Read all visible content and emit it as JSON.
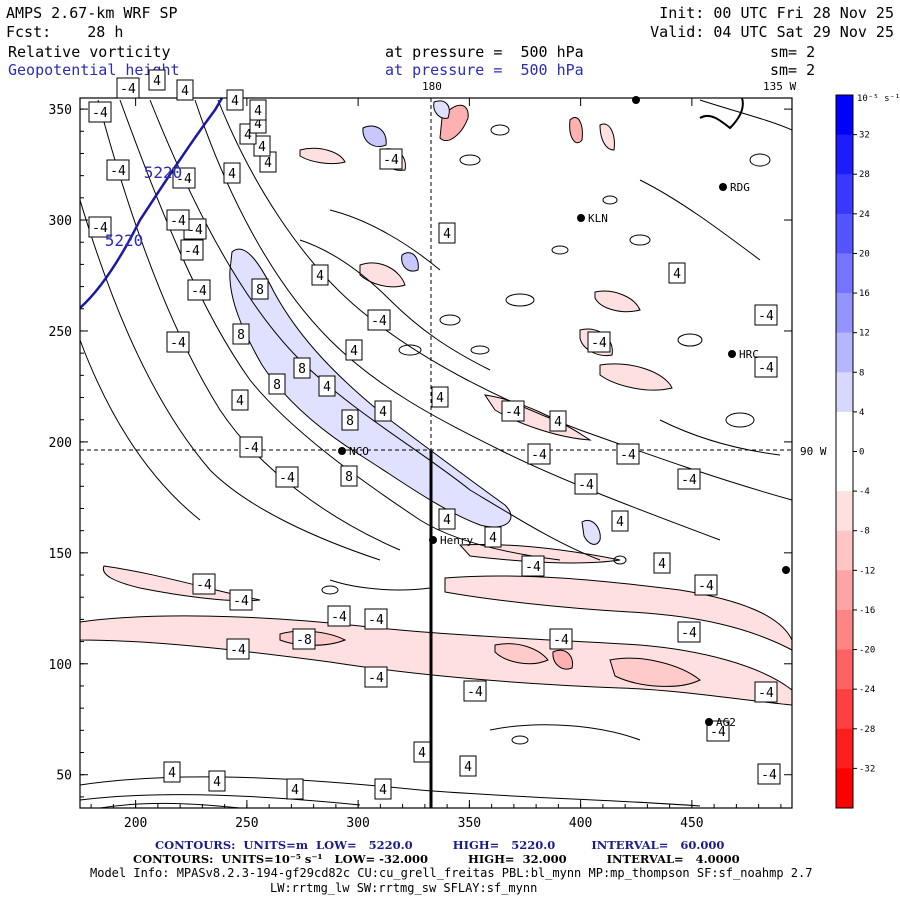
{
  "header": {
    "model": "AMPS 2.67-km WRF SP",
    "init": "Init: 00 UTC Fri 28 Nov 25",
    "fcst": "Fcst:    28 h",
    "valid": "Valid: 04 UTC Sat 29 Nov 25",
    "field1": "Relative vorticity",
    "field1_level": "at pressure =  500 hPa",
    "field1_smooth": "sm= 2",
    "field2": "Geopotential height",
    "field2_level": "at pressure =  500 hPa",
    "field2_smooth": "sm= 2"
  },
  "map": {
    "x_ticks": [
      "200",
      "250",
      "300",
      "350",
      "400",
      "450"
    ],
    "y_ticks": [
      "350",
      "300",
      "250",
      "200",
      "150",
      "100",
      "50"
    ],
    "x_range": [
      175,
      495
    ],
    "y_range": [
      35,
      355
    ],
    "meridian_180_label": "180",
    "meridian_135w_label": "135 W",
    "lat_90w_label": "90 W",
    "contour_labels": [
      {
        "t": "-4",
        "x": 178,
        "y": 342
      },
      {
        "t": "-4",
        "x": 195,
        "y": 229
      },
      {
        "t": "4",
        "x": 232,
        "y": 173
      },
      {
        "t": "4",
        "x": 268,
        "y": 162
      },
      {
        "t": "4",
        "x": 262,
        "y": 146
      },
      {
        "t": "4",
        "x": 248,
        "y": 134
      },
      {
        "t": "4",
        "x": 258,
        "y": 123
      },
      {
        "t": "4",
        "x": 258,
        "y": 110
      },
      {
        "t": "4",
        "x": 235,
        "y": 100
      },
      {
        "t": "4",
        "x": 185,
        "y": 90
      },
      {
        "t": "4",
        "x": 157,
        "y": 80
      },
      {
        "t": "-4",
        "x": 128,
        "y": 88
      },
      {
        "t": "-4",
        "x": 100,
        "y": 112
      },
      {
        "t": "-4",
        "x": 118,
        "y": 170
      },
      {
        "t": "-4",
        "x": 100,
        "y": 227
      },
      {
        "t": "-4",
        "x": 184,
        "y": 178
      },
      {
        "t": "-4",
        "x": 178,
        "y": 220
      },
      {
        "t": "-4",
        "x": 192,
        "y": 250
      },
      {
        "t": "-4",
        "x": 199,
        "y": 290
      },
      {
        "t": "-4",
        "x": 251,
        "y": 447
      },
      {
        "t": "-4",
        "x": 287,
        "y": 477
      },
      {
        "t": "-4",
        "x": 204,
        "y": 584
      },
      {
        "t": "-4",
        "x": 241,
        "y": 600
      },
      {
        "t": "-4",
        "x": 339,
        "y": 616
      },
      {
        "t": "-4",
        "x": 376,
        "y": 619
      },
      {
        "t": "-8",
        "x": 304,
        "y": 639
      },
      {
        "t": "-4",
        "x": 238,
        "y": 649
      },
      {
        "t": "-4",
        "x": 376,
        "y": 677
      },
      {
        "t": "-4",
        "x": 475,
        "y": 691
      },
      {
        "t": "-4",
        "x": 561,
        "y": 639
      },
      {
        "t": "-4",
        "x": 689,
        "y": 632
      },
      {
        "t": "-4",
        "x": 766,
        "y": 692
      },
      {
        "t": "-4",
        "x": 718,
        "y": 731
      },
      {
        "t": "-4",
        "x": 769,
        "y": 774
      },
      {
        "t": "4",
        "x": 422,
        "y": 752
      },
      {
        "t": "4",
        "x": 468,
        "y": 766
      },
      {
        "t": "4",
        "x": 383,
        "y": 789
      },
      {
        "t": "4",
        "x": 295,
        "y": 789
      },
      {
        "t": "4",
        "x": 217,
        "y": 781
      },
      {
        "t": "4",
        "x": 172,
        "y": 772
      },
      {
        "t": "8",
        "x": 260,
        "y": 289
      },
      {
        "t": "8",
        "x": 241,
        "y": 334
      },
      {
        "t": "8",
        "x": 302,
        "y": 368
      },
      {
        "t": "8",
        "x": 277,
        "y": 384
      },
      {
        "t": "8",
        "x": 350,
        "y": 420
      },
      {
        "t": "8",
        "x": 349,
        "y": 476
      },
      {
        "t": "4",
        "x": 240,
        "y": 400
      },
      {
        "t": "4",
        "x": 327,
        "y": 386
      },
      {
        "t": "4",
        "x": 354,
        "y": 350
      },
      {
        "t": "4",
        "x": 320,
        "y": 275
      },
      {
        "t": "4",
        "x": 383,
        "y": 411
      },
      {
        "t": "4",
        "x": 440,
        "y": 397
      },
      {
        "t": "-4",
        "x": 379,
        "y": 320
      },
      {
        "t": "4",
        "x": 447,
        "y": 233
      },
      {
        "t": "-4",
        "x": 391,
        "y": 159
      },
      {
        "t": "-4",
        "x": 539,
        "y": 454
      },
      {
        "t": "-4",
        "x": 513,
        "y": 411
      },
      {
        "t": "4",
        "x": 558,
        "y": 421
      },
      {
        "t": "-4",
        "x": 599,
        "y": 342
      },
      {
        "t": "-4",
        "x": 628,
        "y": 454
      },
      {
        "t": "-4",
        "x": 586,
        "y": 484
      },
      {
        "t": "4",
        "x": 620,
        "y": 521
      },
      {
        "t": "-4",
        "x": 689,
        "y": 479
      },
      {
        "t": "4",
        "x": 677,
        "y": 273
      },
      {
        "t": "-4",
        "x": 766,
        "y": 315
      },
      {
        "t": "-4",
        "x": 766,
        "y": 367
      },
      {
        "t": "4",
        "x": 447,
        "y": 519
      },
      {
        "t": "4",
        "x": 493,
        "y": 537
      },
      {
        "t": "-4",
        "x": 533,
        "y": 566
      },
      {
        "t": "4",
        "x": 662,
        "y": 563
      },
      {
        "t": "-4",
        "x": 706,
        "y": 585
      }
    ],
    "height_labels": [
      {
        "t": "5220",
        "x": 163,
        "y": 172
      },
      {
        "t": "5220",
        "x": 124,
        "y": 240
      }
    ],
    "stations": [
      {
        "name": "RDG",
        "x": 723,
        "y": 187
      },
      {
        "name": "KLN",
        "x": 581,
        "y": 218
      },
      {
        "name": "HRC",
        "x": 732,
        "y": 354
      },
      {
        "name": "NCO",
        "x": 342,
        "y": 451
      },
      {
        "name": "Henry",
        "x": 433,
        "y": 540
      },
      {
        "name": "AG2",
        "x": 709,
        "y": 722
      },
      {
        "name": "",
        "x": 786,
        "y": 570
      },
      {
        "name": "",
        "x": 636,
        "y": 100
      }
    ]
  },
  "colorbar": {
    "unit_label": "10⁻⁵ s⁻¹",
    "labels": [
      "32",
      "28",
      "24",
      "20",
      "16",
      "12",
      "8",
      "4",
      "0",
      "-4",
      "-8",
      "-12",
      "-16",
      "-20",
      "-24",
      "-28",
      "-32"
    ],
    "colors": [
      "#0000ff",
      "#1c1cff",
      "#3838ff",
      "#5555ff",
      "#7474ff",
      "#9494ff",
      "#b6b6ff",
      "#d8d8ff",
      "#ffffff",
      "#ffffff",
      "#ffe0e0",
      "#ffc4c4",
      "#ffa4a4",
      "#ff8484",
      "#ff6262",
      "#ff4040",
      "#ff1e1e",
      "#ff0000"
    ]
  },
  "footer": {
    "line1": "CONTOURS:  UNITS=m  LOW=   5220.0          HIGH=   5220.0         INTERVAL=   60.000",
    "line2": "CONTOURS:  UNITS=10⁻⁵ s⁻¹   LOW= -32.000          HIGH=  32.000          INTERVAL=   4.0000",
    "line3": "Model Info: MPASv8.2.3-194-gf29cd82c CU:cu_grell_freitas PBL:bl_mynn MP:mp_thompson SF:sf_noahmp 2.7",
    "line4": "LW:rrtmg_lw SW:rrtmg_sw SFLAY:sf_mynn"
  }
}
